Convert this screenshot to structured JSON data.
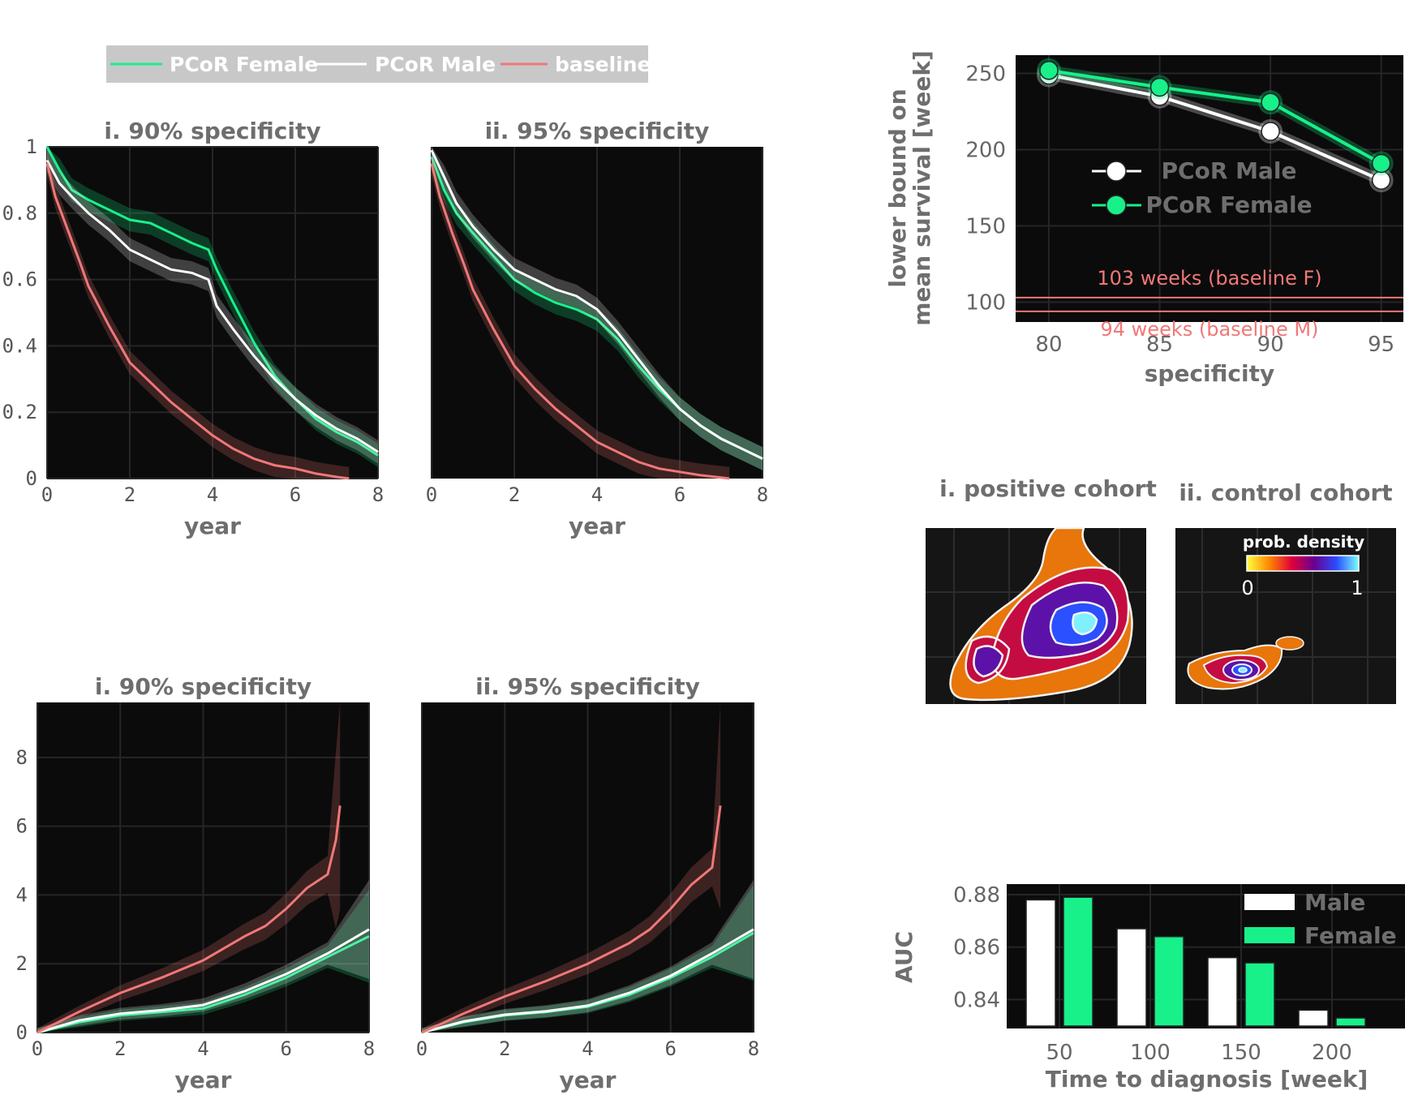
{
  "legend": {
    "items": [
      {
        "label": "PCoR Female",
        "color": "#18f08a"
      },
      {
        "label": "PCoR Male",
        "color": "#ffffff"
      },
      {
        "label": "baseline",
        "color": "#f07878"
      }
    ]
  },
  "colors": {
    "female": "#18f08a",
    "male": "#ffffff",
    "baseline": "#f07878",
    "panel_bg": "#0b0b0b"
  },
  "chart_data": [
    {
      "id": "survival-90",
      "type": "line",
      "title": "i. 90% specificity",
      "xlabel": "year",
      "ylabel": "",
      "xlim": [
        0,
        8
      ],
      "ylim": [
        0,
        1
      ],
      "xticks": [
        0,
        2,
        4,
        6,
        8
      ],
      "yticks": [
        0,
        0.2,
        0.4,
        0.6,
        0.8,
        1
      ],
      "ytick_labels": [
        "0",
        "0.2",
        "0.4",
        "0.6",
        "0.8",
        "1"
      ],
      "grid": true,
      "series": [
        {
          "name": "PCoR Female",
          "x": [
            0,
            0.3,
            0.6,
            1,
            1.5,
            2,
            2.5,
            3,
            3.5,
            3.9,
            4.1,
            4.5,
            5,
            5.5,
            6,
            6.5,
            7,
            7.5,
            8
          ],
          "y": [
            1,
            0.93,
            0.87,
            0.84,
            0.81,
            0.78,
            0.77,
            0.74,
            0.71,
            0.69,
            0.63,
            0.53,
            0.41,
            0.31,
            0.24,
            0.18,
            0.14,
            0.11,
            0.07
          ]
        },
        {
          "name": "PCoR Male",
          "x": [
            0,
            0.3,
            0.6,
            1,
            1.5,
            2,
            2.5,
            3,
            3.5,
            3.9,
            4.1,
            4.5,
            5,
            5.5,
            6,
            6.5,
            7,
            7.5,
            8
          ],
          "y": [
            0.96,
            0.89,
            0.85,
            0.8,
            0.75,
            0.69,
            0.66,
            0.63,
            0.62,
            0.6,
            0.52,
            0.45,
            0.37,
            0.3,
            0.24,
            0.19,
            0.15,
            0.12,
            0.08
          ]
        },
        {
          "name": "baseline",
          "x": [
            0,
            0.2,
            0.5,
            0.8,
            1,
            1.5,
            2,
            2.5,
            3,
            3.5,
            4,
            4.5,
            5,
            5.5,
            6,
            6.5,
            7,
            7.3
          ],
          "y": [
            0.95,
            0.85,
            0.75,
            0.65,
            0.58,
            0.46,
            0.35,
            0.29,
            0.23,
            0.18,
            0.13,
            0.09,
            0.06,
            0.04,
            0.03,
            0.015,
            0.005,
            0
          ]
        }
      ]
    },
    {
      "id": "survival-95",
      "type": "line",
      "title": "ii. 95% specificity",
      "xlabel": "year",
      "ylabel": "",
      "xlim": [
        0,
        8
      ],
      "ylim": [
        0,
        1
      ],
      "xticks": [
        0,
        2,
        4,
        6,
        8
      ],
      "grid": true,
      "series": [
        {
          "name": "PCoR Female",
          "x": [
            0,
            0.3,
            0.6,
            1,
            1.5,
            2,
            2.5,
            3,
            3.5,
            4,
            4.5,
            5,
            5.5,
            6,
            6.5,
            7,
            7.5,
            8
          ],
          "y": [
            0.97,
            0.87,
            0.8,
            0.74,
            0.67,
            0.6,
            0.56,
            0.53,
            0.51,
            0.48,
            0.42,
            0.34,
            0.27,
            0.21,
            0.16,
            0.12,
            0.09,
            0.06
          ]
        },
        {
          "name": "PCoR Male",
          "x": [
            0,
            0.3,
            0.6,
            1,
            1.5,
            2,
            2.5,
            3,
            3.5,
            4,
            4.5,
            5,
            5.5,
            6,
            6.5,
            7,
            7.5,
            8
          ],
          "y": [
            0.99,
            0.91,
            0.83,
            0.76,
            0.69,
            0.63,
            0.6,
            0.57,
            0.55,
            0.51,
            0.44,
            0.36,
            0.28,
            0.21,
            0.16,
            0.12,
            0.09,
            0.06
          ]
        },
        {
          "name": "baseline",
          "x": [
            0,
            0.2,
            0.5,
            0.8,
            1,
            1.5,
            2,
            2.5,
            3,
            3.5,
            4,
            4.5,
            5,
            5.5,
            6,
            6.5,
            7,
            7.2
          ],
          "y": [
            0.95,
            0.85,
            0.74,
            0.64,
            0.57,
            0.45,
            0.34,
            0.27,
            0.21,
            0.16,
            0.11,
            0.08,
            0.05,
            0.03,
            0.02,
            0.01,
            0.003,
            0
          ]
        }
      ]
    },
    {
      "id": "hazard-90",
      "type": "line",
      "title": "i. 90% specificity",
      "xlabel": "year",
      "ylabel": "",
      "xlim": [
        0,
        8
      ],
      "ylim": [
        0,
        9.6
      ],
      "xticks": [
        0,
        2,
        4,
        6,
        8
      ],
      "yticks": [
        0,
        2,
        4,
        6,
        8
      ],
      "grid": true,
      "series": [
        {
          "name": "PCoR Female",
          "x": [
            0,
            1,
            2,
            3,
            4,
            5,
            6,
            7,
            8
          ],
          "y": [
            0,
            0.3,
            0.5,
            0.6,
            0.7,
            1.1,
            1.6,
            2.2,
            2.8
          ]
        },
        {
          "name": "PCoR Male",
          "x": [
            0,
            1,
            2,
            3,
            4,
            5,
            6,
            7,
            8
          ],
          "y": [
            0,
            0.35,
            0.55,
            0.65,
            0.8,
            1.2,
            1.7,
            2.3,
            3.0
          ]
        },
        {
          "name": "baseline",
          "x": [
            0,
            1,
            2,
            3,
            4,
            5,
            5.5,
            6,
            6.5,
            7,
            7.2,
            7.3
          ],
          "y": [
            0,
            0.6,
            1.15,
            1.6,
            2.1,
            2.8,
            3.1,
            3.6,
            4.2,
            4.6,
            5.6,
            6.6
          ]
        }
      ]
    },
    {
      "id": "hazard-95",
      "type": "line",
      "title": "ii. 95% specificity",
      "xlabel": "year",
      "ylabel": "",
      "xlim": [
        0,
        8
      ],
      "ylim": [
        0,
        9.6
      ],
      "xticks": [
        0,
        2,
        4,
        6,
        8
      ],
      "grid": true,
      "series": [
        {
          "name": "PCoR Female",
          "x": [
            0,
            1,
            2,
            3,
            4,
            5,
            6,
            7,
            8
          ],
          "y": [
            0,
            0.3,
            0.5,
            0.6,
            0.75,
            1.1,
            1.6,
            2.2,
            2.9
          ]
        },
        {
          "name": "PCoR Male",
          "x": [
            0,
            1,
            2,
            3,
            4,
            5,
            6,
            7,
            8
          ],
          "y": [
            0,
            0.32,
            0.52,
            0.62,
            0.78,
            1.15,
            1.65,
            2.3,
            3.0
          ]
        },
        {
          "name": "baseline",
          "x": [
            0,
            1,
            2,
            3,
            4,
            5,
            5.5,
            6,
            6.5,
            7,
            7.2
          ],
          "y": [
            0,
            0.55,
            1.05,
            1.5,
            2.0,
            2.6,
            3.0,
            3.6,
            4.3,
            4.8,
            6.6
          ]
        }
      ]
    },
    {
      "id": "mean-survival",
      "type": "line",
      "title": "",
      "xlabel": "specificity",
      "ylabel_lines": [
        "lower bound on",
        "mean survival [week]"
      ],
      "xlim": [
        78.5,
        96
      ],
      "ylim": [
        87,
        262
      ],
      "xticks": [
        80,
        85,
        90,
        95
      ],
      "yticks": [
        100,
        150,
        200,
        250
      ],
      "grid": true,
      "series": [
        {
          "name": "PCoR Male",
          "x": [
            80,
            85,
            90,
            95
          ],
          "y": [
            249,
            235,
            212,
            180
          ]
        },
        {
          "name": "PCoR Female",
          "x": [
            80,
            85,
            90,
            95
          ],
          "y": [
            252,
            241,
            231,
            191
          ]
        }
      ],
      "hlines": [
        {
          "y": 103,
          "label": "103 weeks (baseline F)"
        },
        {
          "y": 94,
          "label": "94 weeks (baseline M)"
        }
      ]
    },
    {
      "id": "auc",
      "type": "bar",
      "title": "",
      "xlabel": "Time to diagnosis [week]",
      "ylabel": "AUC",
      "categories": [
        "50",
        "100",
        "150",
        "200"
      ],
      "ylim": [
        0.829,
        0.884
      ],
      "yticks": [
        0.84,
        0.86,
        0.88
      ],
      "series": [
        {
          "name": "Male",
          "values": [
            0.878,
            0.867,
            0.856,
            0.836
          ]
        },
        {
          "name": "Female",
          "values": [
            0.879,
            0.864,
            0.854,
            0.833
          ]
        }
      ]
    }
  ],
  "density": {
    "titles": [
      "i. positive cohort",
      "ii. control cohort"
    ],
    "colorbar_label": "prob. density",
    "colorbar_min": "0",
    "colorbar_max": "1"
  }
}
